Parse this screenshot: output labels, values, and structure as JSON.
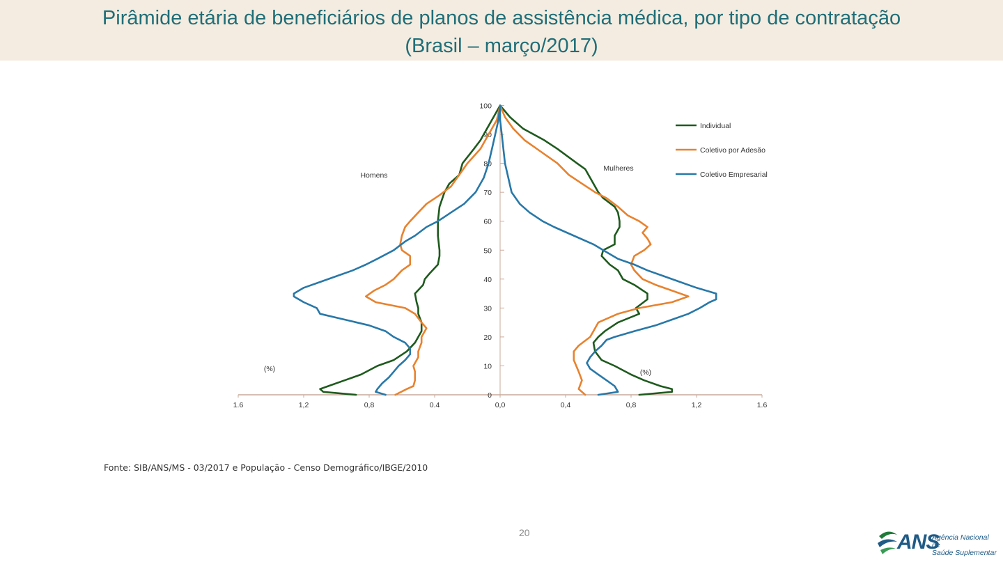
{
  "header": {
    "title_line1": "Pirâmide etária de beneficiários de planos de assistência médica, por tipo de contratação",
    "title_line2": "(Brasil – março/2017)"
  },
  "footer": {
    "source": "Fonte: SIB/ANS/MS - 03/2017 e População - Censo Demográfico/IBGE/2010",
    "page_number": "20"
  },
  "logo": {
    "abbr": "ANS",
    "name_line1": "Agência Nacional de",
    "name_line2": "Saúde Suplementar"
  },
  "colors": {
    "title": "#1f6e78",
    "individual": "#1e5a1e",
    "adesao": "#e8822e",
    "empresarial": "#2878a8",
    "axis": "#c9a99a"
  },
  "chart_data": {
    "type": "line",
    "orientation": "population-pyramid",
    "xlabel_left": "(%)",
    "xlabel_right": "(%)",
    "label_left": "Homens",
    "label_right": "Mulheres",
    "x_ticks": [
      "1.6",
      "1,2",
      "0,8",
      "0.4",
      "0,0",
      "0,4",
      "0,8",
      "1,2",
      "1.6"
    ],
    "y_ticks": [
      "0",
      "10",
      "20",
      "30",
      "40",
      "50",
      "60",
      "70",
      "80",
      "90",
      "100"
    ],
    "xlim": [
      -1.6,
      1.6
    ],
    "ylim": [
      0,
      100
    ],
    "series": [
      {
        "name": "Individual",
        "key": "individual",
        "men": [
          [
            0,
            0.88
          ],
          [
            1,
            1.08
          ],
          [
            2,
            1.1
          ],
          [
            3,
            1.05
          ],
          [
            5,
            0.95
          ],
          [
            7,
            0.85
          ],
          [
            10,
            0.75
          ],
          [
            12,
            0.65
          ],
          [
            15,
            0.57
          ],
          [
            18,
            0.52
          ],
          [
            20,
            0.5
          ],
          [
            22,
            0.48
          ],
          [
            25,
            0.48
          ],
          [
            28,
            0.5
          ],
          [
            30,
            0.5
          ],
          [
            32,
            0.51
          ],
          [
            35,
            0.52
          ],
          [
            38,
            0.47
          ],
          [
            40,
            0.46
          ],
          [
            42,
            0.43
          ],
          [
            45,
            0.38
          ],
          [
            48,
            0.37
          ],
          [
            50,
            0.37
          ],
          [
            55,
            0.38
          ],
          [
            60,
            0.38
          ],
          [
            65,
            0.37
          ],
          [
            70,
            0.34
          ],
          [
            73,
            0.31
          ],
          [
            76,
            0.25
          ],
          [
            80,
            0.23
          ],
          [
            85,
            0.16
          ],
          [
            88,
            0.12
          ],
          [
            92,
            0.08
          ],
          [
            96,
            0.04
          ],
          [
            100,
            0.0
          ]
        ],
        "women": [
          [
            0,
            0.85
          ],
          [
            1,
            1.05
          ],
          [
            2,
            1.05
          ],
          [
            3,
            0.98
          ],
          [
            5,
            0.88
          ],
          [
            7,
            0.8
          ],
          [
            10,
            0.7
          ],
          [
            12,
            0.62
          ],
          [
            15,
            0.58
          ],
          [
            18,
            0.57
          ],
          [
            20,
            0.6
          ],
          [
            22,
            0.64
          ],
          [
            25,
            0.72
          ],
          [
            28,
            0.85
          ],
          [
            30,
            0.83
          ],
          [
            33,
            0.9
          ],
          [
            35,
            0.9
          ],
          [
            38,
            0.82
          ],
          [
            40,
            0.75
          ],
          [
            43,
            0.72
          ],
          [
            45,
            0.67
          ],
          [
            48,
            0.62
          ],
          [
            50,
            0.63
          ],
          [
            52,
            0.7
          ],
          [
            55,
            0.7
          ],
          [
            58,
            0.73
          ],
          [
            60,
            0.73
          ],
          [
            63,
            0.72
          ],
          [
            65,
            0.7
          ],
          [
            68,
            0.63
          ],
          [
            70,
            0.6
          ],
          [
            72,
            0.58
          ],
          [
            75,
            0.55
          ],
          [
            78,
            0.52
          ],
          [
            80,
            0.47
          ],
          [
            85,
            0.35
          ],
          [
            88,
            0.27
          ],
          [
            92,
            0.14
          ],
          [
            96,
            0.06
          ],
          [
            100,
            0.0
          ]
        ]
      },
      {
        "name": "Coletivo por Adesão",
        "key": "adesao",
        "men": [
          [
            0,
            0.64
          ],
          [
            2,
            0.57
          ],
          [
            3,
            0.53
          ],
          [
            5,
            0.52
          ],
          [
            8,
            0.52
          ],
          [
            10,
            0.53
          ],
          [
            13,
            0.5
          ],
          [
            15,
            0.5
          ],
          [
            18,
            0.48
          ],
          [
            20,
            0.48
          ],
          [
            23,
            0.45
          ],
          [
            25,
            0.48
          ],
          [
            28,
            0.52
          ],
          [
            30,
            0.58
          ],
          [
            32,
            0.76
          ],
          [
            34,
            0.82
          ],
          [
            36,
            0.77
          ],
          [
            38,
            0.7
          ],
          [
            40,
            0.65
          ],
          [
            43,
            0.6
          ],
          [
            45,
            0.55
          ],
          [
            48,
            0.55
          ],
          [
            50,
            0.6
          ],
          [
            52,
            0.61
          ],
          [
            55,
            0.6
          ],
          [
            58,
            0.58
          ],
          [
            60,
            0.55
          ],
          [
            63,
            0.5
          ],
          [
            66,
            0.45
          ],
          [
            69,
            0.37
          ],
          [
            72,
            0.3
          ],
          [
            76,
            0.25
          ],
          [
            80,
            0.2
          ],
          [
            85,
            0.12
          ],
          [
            90,
            0.07
          ],
          [
            95,
            0.02
          ],
          [
            100,
            0.0
          ]
        ],
        "women": [
          [
            0,
            0.52
          ],
          [
            2,
            0.48
          ],
          [
            5,
            0.5
          ],
          [
            8,
            0.48
          ],
          [
            12,
            0.45
          ],
          [
            15,
            0.45
          ],
          [
            17,
            0.48
          ],
          [
            20,
            0.55
          ],
          [
            22,
            0.57
          ],
          [
            25,
            0.6
          ],
          [
            28,
            0.72
          ],
          [
            30,
            0.85
          ],
          [
            32,
            1.05
          ],
          [
            34,
            1.15
          ],
          [
            36,
            1.05
          ],
          [
            38,
            0.95
          ],
          [
            40,
            0.87
          ],
          [
            43,
            0.82
          ],
          [
            45,
            0.8
          ],
          [
            48,
            0.82
          ],
          [
            50,
            0.88
          ],
          [
            52,
            0.92
          ],
          [
            54,
            0.9
          ],
          [
            56,
            0.87
          ],
          [
            58,
            0.9
          ],
          [
            60,
            0.85
          ],
          [
            62,
            0.78
          ],
          [
            65,
            0.72
          ],
          [
            68,
            0.65
          ],
          [
            70,
            0.58
          ],
          [
            73,
            0.5
          ],
          [
            76,
            0.42
          ],
          [
            80,
            0.35
          ],
          [
            84,
            0.25
          ],
          [
            88,
            0.15
          ],
          [
            92,
            0.08
          ],
          [
            96,
            0.03
          ],
          [
            100,
            0.0
          ]
        ]
      },
      {
        "name": "Coletivo Empresarial",
        "key": "empresarial",
        "men": [
          [
            0,
            0.7
          ],
          [
            1,
            0.76
          ],
          [
            2,
            0.75
          ],
          [
            4,
            0.72
          ],
          [
            6,
            0.68
          ],
          [
            8,
            0.65
          ],
          [
            10,
            0.62
          ],
          [
            12,
            0.58
          ],
          [
            14,
            0.55
          ],
          [
            16,
            0.55
          ],
          [
            18,
            0.58
          ],
          [
            20,
            0.65
          ],
          [
            22,
            0.7
          ],
          [
            24,
            0.8
          ],
          [
            26,
            0.95
          ],
          [
            28,
            1.1
          ],
          [
            30,
            1.12
          ],
          [
            32,
            1.2
          ],
          [
            34,
            1.26
          ],
          [
            35,
            1.26
          ],
          [
            37,
            1.2
          ],
          [
            39,
            1.1
          ],
          [
            41,
            1.0
          ],
          [
            43,
            0.9
          ],
          [
            45,
            0.82
          ],
          [
            47,
            0.75
          ],
          [
            50,
            0.65
          ],
          [
            53,
            0.58
          ],
          [
            55,
            0.52
          ],
          [
            58,
            0.45
          ],
          [
            60,
            0.38
          ],
          [
            63,
            0.3
          ],
          [
            66,
            0.22
          ],
          [
            70,
            0.15
          ],
          [
            75,
            0.1
          ],
          [
            80,
            0.07
          ],
          [
            85,
            0.05
          ],
          [
            90,
            0.03
          ],
          [
            95,
            0.01
          ],
          [
            100,
            0.0
          ]
        ],
        "women": [
          [
            0,
            0.6
          ],
          [
            1,
            0.72
          ],
          [
            3,
            0.7
          ],
          [
            5,
            0.65
          ],
          [
            7,
            0.6
          ],
          [
            9,
            0.55
          ],
          [
            11,
            0.53
          ],
          [
            13,
            0.55
          ],
          [
            15,
            0.58
          ],
          [
            17,
            0.62
          ],
          [
            19,
            0.65
          ],
          [
            20,
            0.7
          ],
          [
            22,
            0.82
          ],
          [
            24,
            0.95
          ],
          [
            26,
            1.05
          ],
          [
            28,
            1.15
          ],
          [
            30,
            1.22
          ],
          [
            32,
            1.28
          ],
          [
            33,
            1.32
          ],
          [
            35,
            1.32
          ],
          [
            37,
            1.2
          ],
          [
            39,
            1.1
          ],
          [
            41,
            1.0
          ],
          [
            43,
            0.9
          ],
          [
            45,
            0.82
          ],
          [
            47,
            0.72
          ],
          [
            50,
            0.63
          ],
          [
            52,
            0.57
          ],
          [
            55,
            0.45
          ],
          [
            58,
            0.33
          ],
          [
            60,
            0.26
          ],
          [
            63,
            0.18
          ],
          [
            66,
            0.12
          ],
          [
            70,
            0.07
          ],
          [
            75,
            0.05
          ],
          [
            80,
            0.03
          ],
          [
            85,
            0.02
          ],
          [
            90,
            0.01
          ],
          [
            95,
            0.0
          ],
          [
            100,
            0.0
          ]
        ]
      }
    ],
    "legend": [
      "Individual",
      "Coletivo por Adesão",
      "Coletivo Empresarial"
    ],
    "legend_position": "top-right"
  }
}
